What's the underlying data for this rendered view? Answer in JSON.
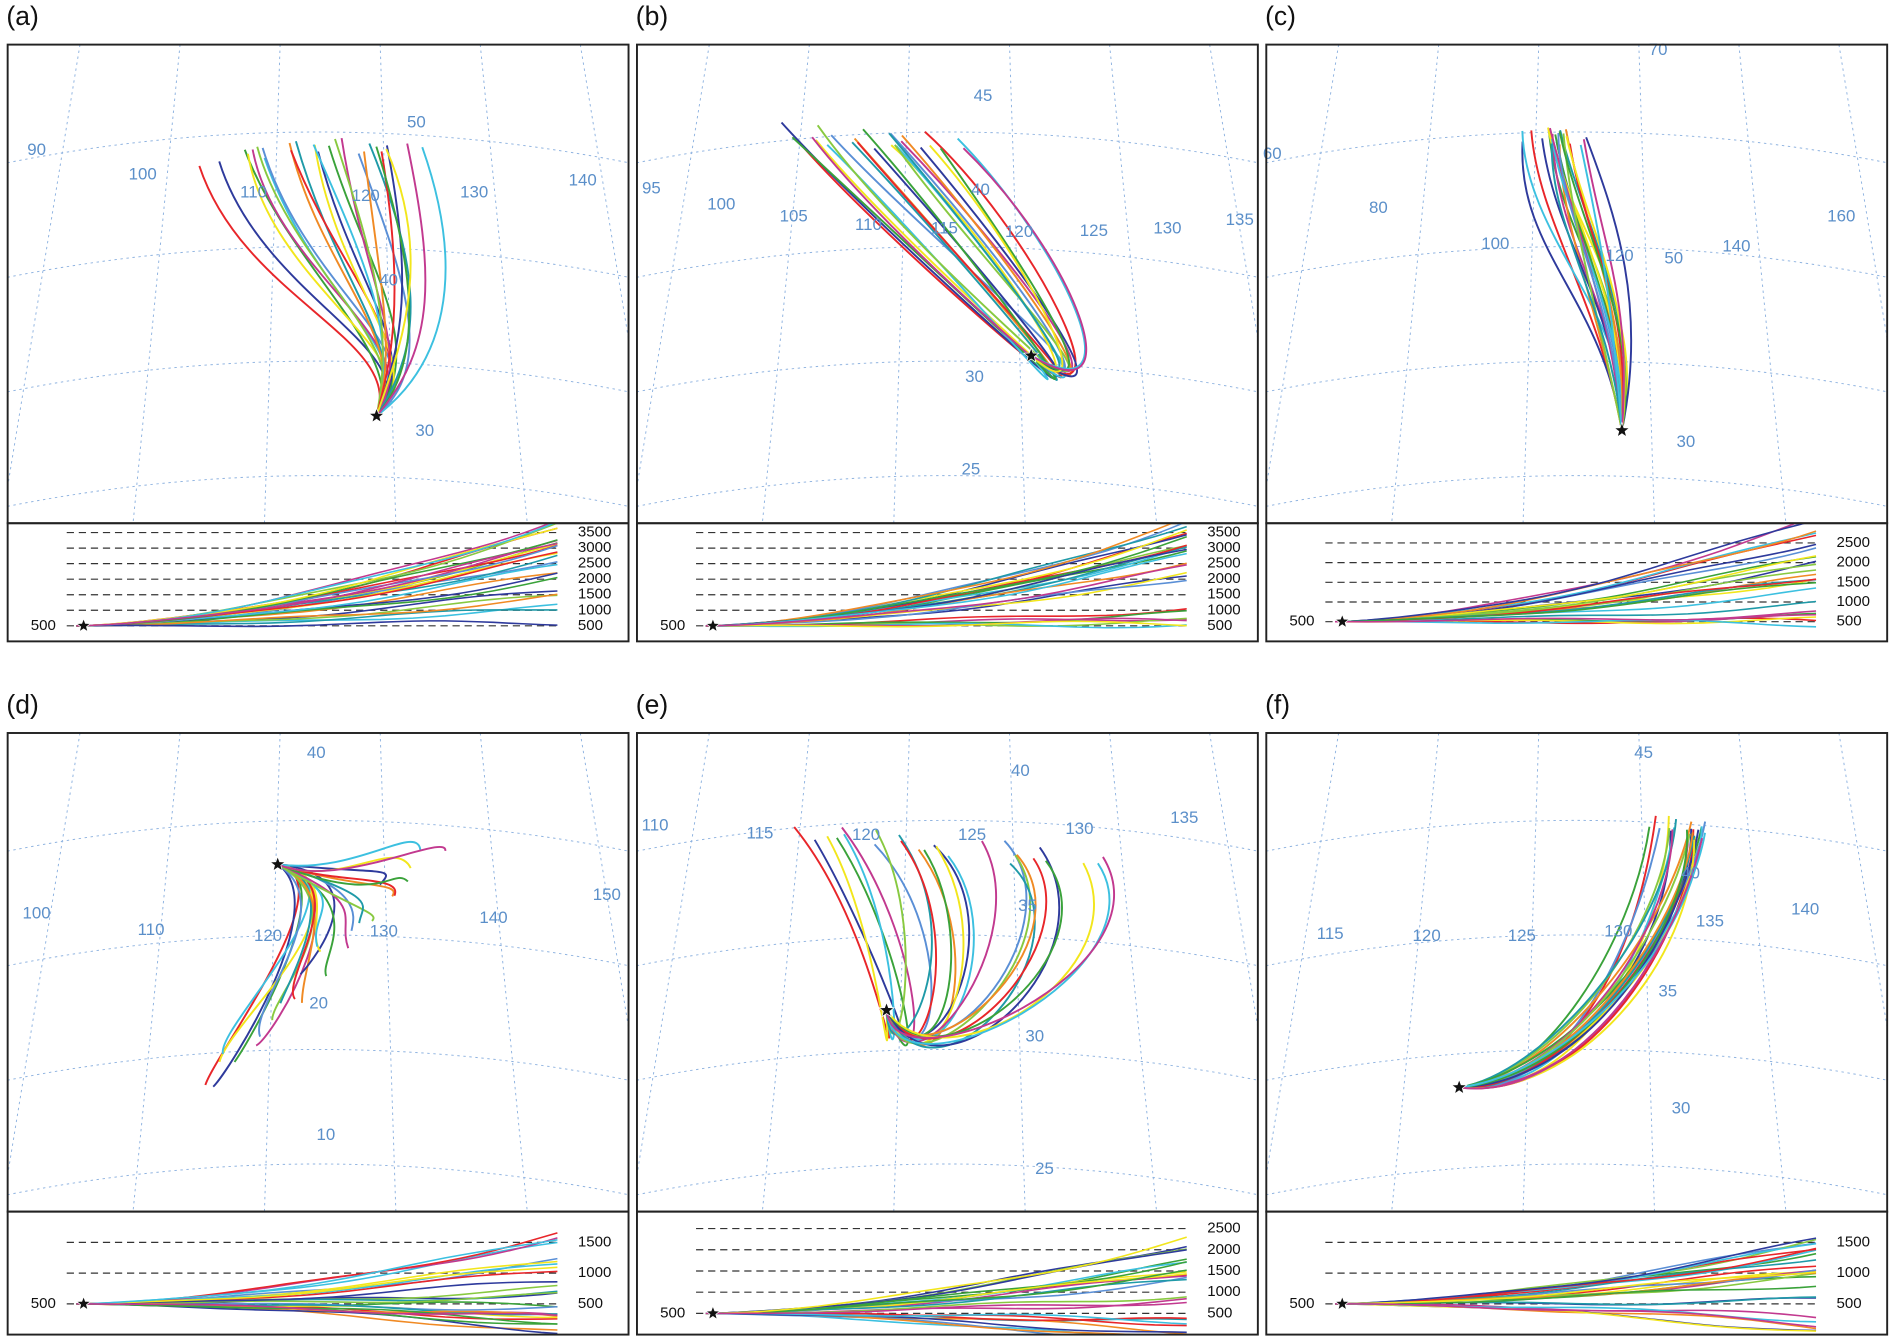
{
  "panels": [
    {
      "label": "(a)",
      "map_labels": [
        90,
        100,
        110,
        120,
        130,
        140,
        50,
        40,
        30
      ],
      "height_ticks": [
        3500,
        3000,
        2500,
        2000,
        1500,
        1000,
        500
      ],
      "ylim": [
        0,
        3800
      ],
      "start_height": 500
    },
    {
      "label": "(b)",
      "map_labels": [
        45,
        95,
        100,
        105,
        110,
        115,
        120,
        125,
        130,
        135,
        40,
        30,
        25
      ],
      "height_ticks": [
        3500,
        3000,
        2500,
        2000,
        1500,
        1000,
        500
      ],
      "ylim": [
        0,
        3800
      ],
      "start_height": 500
    },
    {
      "label": "(c)",
      "map_labels": [
        70,
        60,
        80,
        100,
        120,
        140,
        160,
        50,
        30
      ],
      "height_ticks": [
        2500,
        2000,
        1500,
        1000,
        500
      ],
      "ylim": [
        0,
        3000
      ],
      "start_height": 500
    },
    {
      "label": "(d)",
      "map_labels": [
        40,
        100,
        110,
        120,
        130,
        140,
        150,
        20,
        10
      ],
      "height_ticks": [
        1500,
        1000,
        500
      ],
      "ylim": [
        0,
        2000
      ],
      "start_height": 500
    },
    {
      "label": "(e)",
      "map_labels": [
        40,
        110,
        115,
        120,
        125,
        130,
        135,
        35,
        30,
        25
      ],
      "height_ticks": [
        2500,
        2000,
        1500,
        1000,
        500
      ],
      "ylim": [
        0,
        2900
      ],
      "start_height": 500
    },
    {
      "label": "(f)",
      "map_labels": [
        45,
        115,
        120,
        125,
        130,
        135,
        140,
        40,
        35,
        30
      ],
      "height_ticks": [
        1500,
        1000,
        500
      ],
      "ylim": [
        0,
        2000
      ],
      "start_height": 500
    }
  ]
}
